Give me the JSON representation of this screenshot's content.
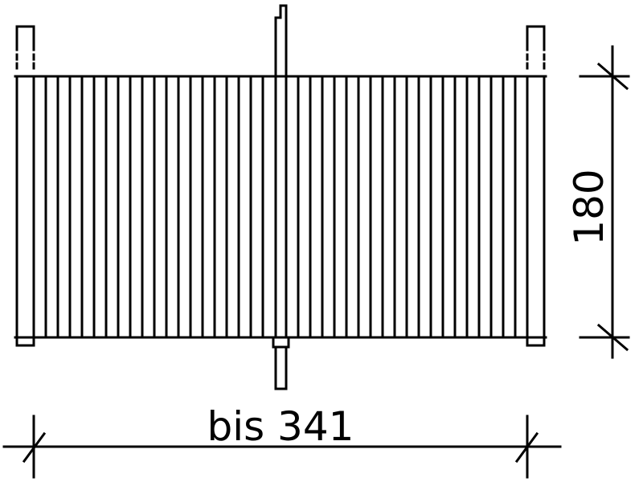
{
  "dimensions": {
    "width_label": "bis 341",
    "height_label": "180"
  },
  "drawing": {
    "vertical_slat_count": 42,
    "line_color": "#000000",
    "background_color": "#ffffff"
  }
}
